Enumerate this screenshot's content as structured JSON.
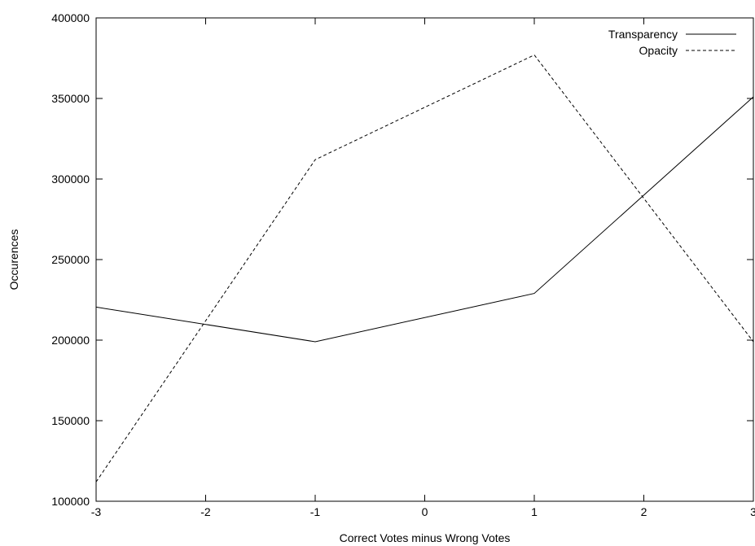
{
  "chart_data": {
    "type": "line",
    "title": "",
    "xlabel": "Correct Votes minus Wrong Votes",
    "ylabel": "Occurences",
    "xlim": [
      -3,
      3
    ],
    "ylim": [
      100000,
      400000
    ],
    "x_ticks": [
      -3,
      -2,
      -1,
      0,
      1,
      2,
      3
    ],
    "x_tick_labels": [
      "-3",
      "-2",
      "-1",
      "0",
      "1",
      "2",
      "3"
    ],
    "y_ticks": [
      100000,
      150000,
      200000,
      250000,
      300000,
      350000,
      400000
    ],
    "y_tick_labels": [
      "100000",
      "150000",
      "200000",
      "250000",
      "300000",
      "350000",
      "400000"
    ],
    "grid": false,
    "legend_position": "top-right",
    "x": [
      -3,
      -1,
      1,
      3
    ],
    "series": [
      {
        "name": "Transparency",
        "style": "solid",
        "values": [
          220500,
          199000,
          229000,
          351000
        ]
      },
      {
        "name": "Opacity",
        "style": "dashed",
        "values": [
          112000,
          312000,
          377000,
          199000
        ]
      }
    ],
    "colors": {
      "line": "#000000",
      "background": "#ffffff"
    }
  }
}
